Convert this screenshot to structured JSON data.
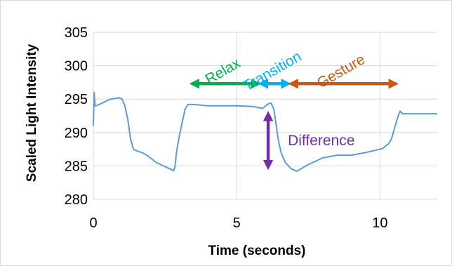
{
  "chart_data": {
    "type": "line",
    "title": "",
    "xlabel": "Time (seconds)",
    "ylabel": "Scaled Light Intensity",
    "xlim": [
      0,
      12
    ],
    "ylim": [
      280,
      305
    ],
    "x_ticks": [
      0,
      5,
      10
    ],
    "y_ticks": [
      280,
      285,
      290,
      295,
      300,
      305
    ],
    "grid": "horizontal",
    "legend": "none",
    "series": [
      {
        "color": "#5b9bd5",
        "x": [
          0.0,
          0.03,
          0.06,
          0.1,
          0.3,
          0.6,
          0.9,
          1.0,
          1.1,
          1.2,
          1.3,
          1.4,
          1.55,
          1.7,
          1.9,
          2.2,
          2.5,
          2.7,
          2.8,
          2.85,
          2.9,
          3.0,
          3.1,
          3.2,
          3.3,
          3.5,
          4.0,
          4.5,
          5.0,
          5.5,
          5.7,
          5.9,
          6.1,
          6.2,
          6.3,
          6.35,
          6.45,
          6.55,
          6.7,
          6.9,
          7.1,
          7.5,
          8.0,
          8.5,
          9.0,
          9.5,
          9.9,
          10.1,
          10.2,
          10.3,
          10.4,
          10.5,
          10.6,
          10.7,
          10.8,
          11.0,
          11.5,
          12.0
        ],
        "values": [
          291,
          296,
          294,
          294,
          294.4,
          295,
          295.2,
          295,
          294,
          292,
          289,
          287.5,
          287.2,
          287,
          286.5,
          285.5,
          284.9,
          284.5,
          284.3,
          284.9,
          287,
          289.5,
          291.5,
          293.5,
          294.2,
          294.2,
          294,
          294,
          294,
          293.9,
          293.8,
          293.6,
          294.3,
          294.4,
          293.5,
          292,
          289,
          287,
          285.5,
          284.6,
          284.2,
          285.2,
          286.2,
          286.6,
          286.6,
          287,
          287.4,
          287.6,
          288,
          288.3,
          289,
          290.5,
          292,
          293.2,
          292.8,
          292.8,
          292.8,
          292.8
        ]
      }
    ],
    "annotations": [
      {
        "label": "Relax",
        "color": "#00b050",
        "x_start": 3.4,
        "x_end": 5.8,
        "y": 297.3
      },
      {
        "label": "Transition",
        "color": "#00b0f0",
        "x_start": 5.8,
        "x_end": 6.85,
        "y": 297.3
      },
      {
        "label": "Gesture",
        "color": "#c55a11",
        "x_start": 6.85,
        "x_end": 10.6,
        "y": 297.3
      },
      {
        "label": "Difference",
        "color": "#7030a0",
        "x": 6.1,
        "y_start": 284.6,
        "y_end": 293.0
      }
    ]
  }
}
